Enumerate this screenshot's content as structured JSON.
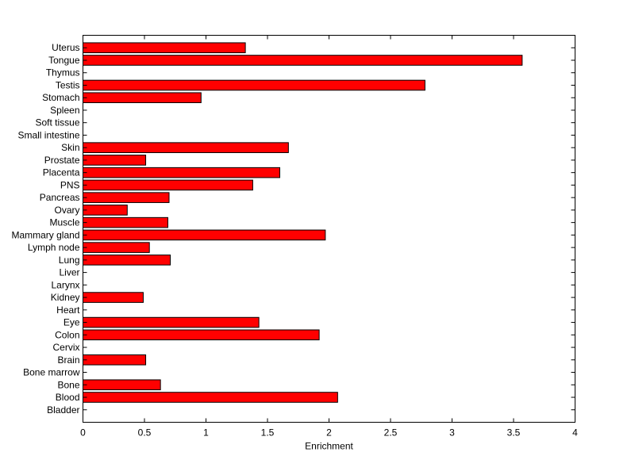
{
  "chart_data": {
    "type": "bar",
    "orientation": "horizontal",
    "categories": [
      "Uterus",
      "Tongue",
      "Thymus",
      "Testis",
      "Stomach",
      "Spleen",
      "Soft tissue",
      "Small intestine",
      "Skin",
      "Prostate",
      "Placenta",
      "PNS",
      "Pancreas",
      "Ovary",
      "Muscle",
      "Mammary gland",
      "Lymph node",
      "Lung",
      "Liver",
      "Larynx",
      "Kidney",
      "Heart",
      "Eye",
      "Colon",
      "Cervix",
      "Brain",
      "Bone marrow",
      "Bone",
      "Blood",
      "Bladder"
    ],
    "values": [
      1.32,
      3.57,
      0,
      2.78,
      0.96,
      0,
      0,
      0,
      1.67,
      0.51,
      1.6,
      1.38,
      0.7,
      0.36,
      0.69,
      1.97,
      0.54,
      0.71,
      0,
      0,
      0.49,
      0,
      1.43,
      1.92,
      0,
      0.51,
      0,
      0.63,
      2.07,
      0
    ],
    "xlabel": "Enrichment",
    "xlim": [
      0,
      4
    ],
    "xticks": [
      "0",
      "0.5",
      "1",
      "1.5",
      "2",
      "2.5",
      "3",
      "3.5",
      "4"
    ],
    "grid": false,
    "bar_color": "#ff0000",
    "edge_color": "#000000"
  }
}
